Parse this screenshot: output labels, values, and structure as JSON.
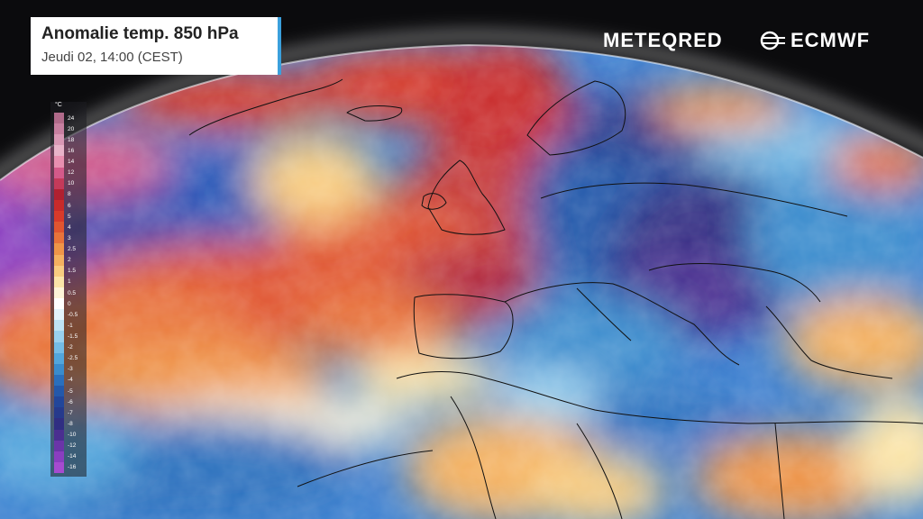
{
  "title": {
    "main": "Anomalie temp. 850 hPa",
    "sub": "Jeudi 02, 14:00 (CEST)"
  },
  "brands": {
    "meteored": "METEQRED",
    "ecmwf": "ECMWF"
  },
  "legend": {
    "unit": "°C",
    "labels": [
      "24",
      "20",
      "18",
      "16",
      "14",
      "12",
      "10",
      "8",
      "6",
      "5",
      "4",
      "3",
      "2.5",
      "2",
      "1.5",
      "1",
      "0.5",
      "0",
      "-0.5",
      "-1",
      "-1.5",
      "-2",
      "-2.5",
      "-3",
      "-4",
      "-5",
      "-6",
      "-7",
      "-8",
      "-10",
      "-12",
      "-14",
      "-16"
    ],
    "colors": [
      "#b06a8a",
      "#c77fa0",
      "#d998b5",
      "#e8b3c9",
      "#e88fb0",
      "#d45a8a",
      "#c43a5a",
      "#b02030",
      "#c82a2a",
      "#d83a2a",
      "#e05530",
      "#e8733a",
      "#ef9548",
      "#f4b160",
      "#f8cc80",
      "#fbe4a8",
      "#fdf4d8",
      "#ffffff",
      "#e4f3fb",
      "#bfe3f4",
      "#99d0ee",
      "#74bce6",
      "#52a6dc",
      "#3a8ccd",
      "#2a6fbd",
      "#2358aa",
      "#22469a",
      "#263a8c",
      "#302e82",
      "#4a2f90",
      "#6a35a8",
      "#8a3ec0",
      "#a64bd0"
    ]
  },
  "colors": {
    "accent": "#3ba0dc",
    "background": "#0b0b0d"
  }
}
